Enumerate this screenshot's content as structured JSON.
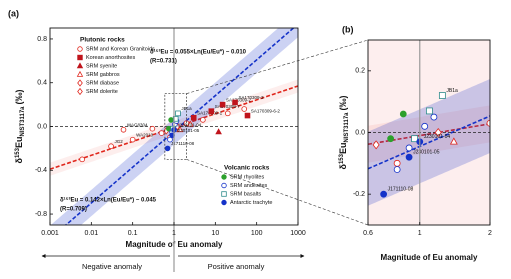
{
  "chart_data": {
    "type": "scatter",
    "panel_label": "(a)",
    "x_label": "Magnitude of Eu anomaly",
    "y_label": {
      "delta": "δ",
      "mass": "153",
      "element": "Eu",
      "sub": "NIST3117a",
      "unit": "(‰)"
    },
    "x_scale": "log",
    "xlim": [
      0.001,
      1000
    ],
    "xticks": [
      0.001,
      0.01,
      0.1,
      1,
      10,
      100,
      1000
    ],
    "ylim": [
      -0.9,
      0.9
    ],
    "yticks": [
      -0.8,
      -0.4,
      {
        "value": 0,
        "label": "0.0"
      },
      0.4,
      0.8
    ],
    "zero_line": true,
    "reference_x": 1,
    "anomaly_labels": [
      "Negative anomaly",
      "Positive anomaly"
    ],
    "fits": [
      {
        "label": "δ¹⁵³Eu = 0.055×Ln(Eu/Eu*) − 0.010",
        "r_label": "(R=0.731)",
        "slope": 0.055,
        "intercept": -0.01,
        "band": 0.06,
        "color": "#e0261c"
      },
      {
        "label": "δ¹⁵³Eu = 0.142×Ln(Eu/Eu*) − 0.045",
        "r_label": "(R=0.709)",
        "slope": 0.142,
        "intercept": -0.045,
        "band": 0.12,
        "color": "#1533c9"
      }
    ],
    "groups": [
      {
        "title": "Plutonic rocks",
        "series": [
          {
            "name": "SRM and Korean Granitoids",
            "color": "#e0261c",
            "marker": "circle-open",
            "x": [
              0.006,
              0.03,
              0.06,
              0.1,
              0.3,
              0.5,
              0.8,
              2,
              5,
              20,
              50
            ],
            "values": [
              -0.3,
              -0.18,
              -0.03,
              -0.12,
              -0.02,
              -0.06,
              -0.1,
              0.03,
              0.06,
              0.12,
              0.16
            ],
            "labels": [
              null,
              "JG2",
              "WAG8304",
              "WA2010",
              null,
              null,
              null,
              null,
              null,
              null,
              null
            ]
          },
          {
            "name": "Korean anorthosites",
            "color": "#c0141c",
            "marker": "square",
            "x": [
              3,
              8,
              15,
              30,
              60
            ],
            "values": [
              0.08,
              0.14,
              0.2,
              0.22,
              0.1
            ],
            "labels": [
              "SA170309-1",
              "SA170309-7",
              "SA170309-2",
              "SA170309-3",
              "SA170309-6-2"
            ]
          },
          {
            "name": "SRM syenite",
            "color": "#c0141c",
            "marker": "triangle",
            "x": [
              12
            ],
            "values": [
              -0.05
            ]
          },
          {
            "name": "SRM gabbros",
            "color": "#e0261c",
            "marker": "triangle-open",
            "x": [
              1.4,
              2.5
            ],
            "values": [
              -0.03,
              0.02
            ]
          },
          {
            "name": "SRM diabase",
            "color": "#e0261c",
            "marker": "diamond-open",
            "x": [
              1.2
            ],
            "values": [
              0.0
            ]
          },
          {
            "name": "SRM dolerite",
            "color": "#e0261c",
            "marker": "diamond-open",
            "x": [
              0.65
            ],
            "values": [
              -0.04
            ]
          }
        ]
      },
      {
        "title": "Volcanic rocks",
        "series": [
          {
            "name": "SRM rhyolites",
            "color": "#2ca02c",
            "marker": "circle",
            "x": [
              0.75,
              0.85
            ],
            "values": [
              -0.02,
              0.06
            ]
          },
          {
            "name": "SRM andesites",
            "color": "#1533c9",
            "marker": "circle-open",
            "x": [
              0.8,
              0.9,
              1.05,
              1.15
            ],
            "values": [
              -0.12,
              -0.05,
              0.02,
              0.05
            ]
          },
          {
            "name": "SRM basalts",
            "color": "#2e8b8b",
            "marker": "square-open",
            "x": [
              0.95,
              1.1,
              1.25
            ],
            "values": [
              -0.02,
              0.07,
              0.12
            ],
            "labels": [
              null,
              null,
              "JB1a"
            ]
          },
          {
            "name": "Antarctic trachyte",
            "color": "#1533c9",
            "marker": "circle",
            "x": [
              0.7,
              0.9,
              1.0
            ],
            "values": [
              -0.2,
              -0.08,
              -0.03
            ],
            "labels": [
              "J171110-08",
              "J230101-05",
              "J230101-04"
            ]
          }
        ]
      }
    ],
    "inset": {
      "panel_label": "(b)",
      "x_label": "Magnitude of Eu anomaly",
      "xlim": [
        0.6,
        2
      ],
      "xticks": [
        0.6,
        1,
        2
      ],
      "ylim": [
        -0.3,
        0.3
      ],
      "yticks": [
        -0.2,
        {
          "value": 0,
          "label": "0.0"
        },
        0.2
      ],
      "background": "#fdeeee"
    }
  }
}
